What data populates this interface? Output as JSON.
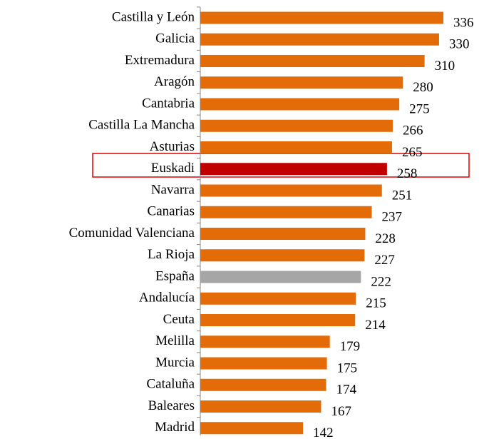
{
  "chart_data": {
    "type": "bar",
    "orientation": "horizontal",
    "categories": [
      "Castilla y León",
      "Galicia",
      "Extremadura",
      "Aragón",
      "Cantabria",
      "Castilla La Mancha",
      "Asturias",
      "Euskadi",
      "Navarra",
      "Canarias",
      "Comunidad Valenciana",
      "La Rioja",
      "España",
      "Andalucía",
      "Ceuta",
      "Melilla",
      "Murcia",
      "Cataluña",
      "Baleares",
      "Madrid"
    ],
    "values": [
      336,
      330,
      310,
      280,
      275,
      266,
      265,
      258,
      251,
      237,
      228,
      227,
      222,
      215,
      214,
      179,
      175,
      174,
      167,
      142
    ],
    "colors": [
      "#e36c09",
      "#e36c09",
      "#e36c09",
      "#e36c09",
      "#e36c09",
      "#e36c09",
      "#e36c09",
      "#c00000",
      "#e36c09",
      "#e36c09",
      "#e36c09",
      "#e36c09",
      "#a6a6a6",
      "#e36c09",
      "#e36c09",
      "#e36c09",
      "#e36c09",
      "#e36c09",
      "#e36c09",
      "#e36c09"
    ]
  }
}
